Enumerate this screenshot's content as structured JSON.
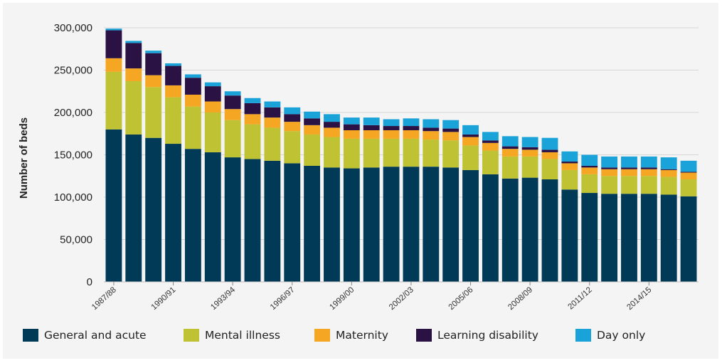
{
  "chart_data": {
    "type": "bar",
    "stacked": true,
    "ylabel": "Number of beds",
    "xlabel": "",
    "ylim": [
      0,
      300000
    ],
    "yticks": [
      "0",
      "50,000",
      "100,000",
      "150,000",
      "200,000",
      "250,000",
      "300,000"
    ],
    "grid": true,
    "legend_position": "bottom",
    "categories": [
      "1987/88",
      "1988/89",
      "1989/90",
      "1990/91",
      "1991/92",
      "1992/93",
      "1993/94",
      "1994/95",
      "1995/96",
      "1996/97",
      "1997/98",
      "1998/99",
      "1999/00",
      "2000/01",
      "2001/02",
      "2002/03",
      "2003/04",
      "2004/05",
      "2005/06",
      "2006/07",
      "2007/08",
      "2008/09",
      "2009/10",
      "2010/11",
      "2011/12",
      "2012/13",
      "2013/14",
      "2014/15",
      "2015/16",
      "2016/17"
    ],
    "xtick_labels": [
      "1987/88",
      "",
      "",
      "1990/91",
      "",
      "",
      "1993/94",
      "",
      "",
      "1996/97",
      "",
      "",
      "1999/00",
      "",
      "",
      "2002/03",
      "",
      "",
      "2005/06",
      "",
      "",
      "2008/09",
      "",
      "",
      "2011/12",
      "",
      "",
      "2014/15",
      "",
      ""
    ],
    "series": [
      {
        "name": "General and acute",
        "color": "#003a57",
        "values": [
          180000,
          174000,
          170000,
          163000,
          157000,
          153000,
          147000,
          145000,
          143000,
          140000,
          137000,
          135000,
          134000,
          135000,
          136000,
          136000,
          136000,
          135000,
          132000,
          127000,
          122000,
          123000,
          121000,
          109000,
          105000,
          104000,
          104000,
          104000,
          103000,
          101000
        ]
      },
      {
        "name": "Mental illness",
        "color": "#bfc232",
        "values": [
          68000,
          63000,
          60000,
          55000,
          50000,
          47000,
          44000,
          41000,
          39000,
          38000,
          37000,
          36000,
          35000,
          34000,
          33000,
          33000,
          32000,
          32000,
          29000,
          28000,
          26000,
          25000,
          24000,
          23000,
          22000,
          21000,
          21000,
          21000,
          21000,
          20000
        ]
      },
      {
        "name": "Maternity",
        "color": "#f5a623",
        "values": [
          16000,
          15000,
          14000,
          14000,
          14000,
          13000,
          13000,
          12000,
          12000,
          11000,
          11000,
          11000,
          10000,
          10000,
          10000,
          10000,
          10000,
          10000,
          10000,
          9000,
          9000,
          8000,
          8000,
          8000,
          8000,
          8000,
          8000,
          8000,
          8000,
          8000
        ]
      },
      {
        "name": "Learning disability",
        "color": "#2a1245",
        "values": [
          33000,
          30000,
          26000,
          23000,
          20000,
          18000,
          16000,
          13000,
          12000,
          9000,
          8000,
          7000,
          7000,
          6000,
          5000,
          5000,
          4000,
          4000,
          3000,
          3000,
          3000,
          3000,
          3000,
          2000,
          2000,
          2000,
          2000,
          2000,
          1000,
          1000
        ]
      },
      {
        "name": "Day only",
        "color": "#1aa3d9",
        "values": [
          2000,
          2500,
          3000,
          3000,
          4000,
          4500,
          5000,
          6000,
          7000,
          8000,
          8000,
          9000,
          8000,
          9000,
          8000,
          9000,
          10000,
          10000,
          11000,
          10000,
          12000,
          12000,
          14000,
          12000,
          13000,
          13000,
          13000,
          13000,
          14000,
          13000
        ]
      }
    ]
  }
}
